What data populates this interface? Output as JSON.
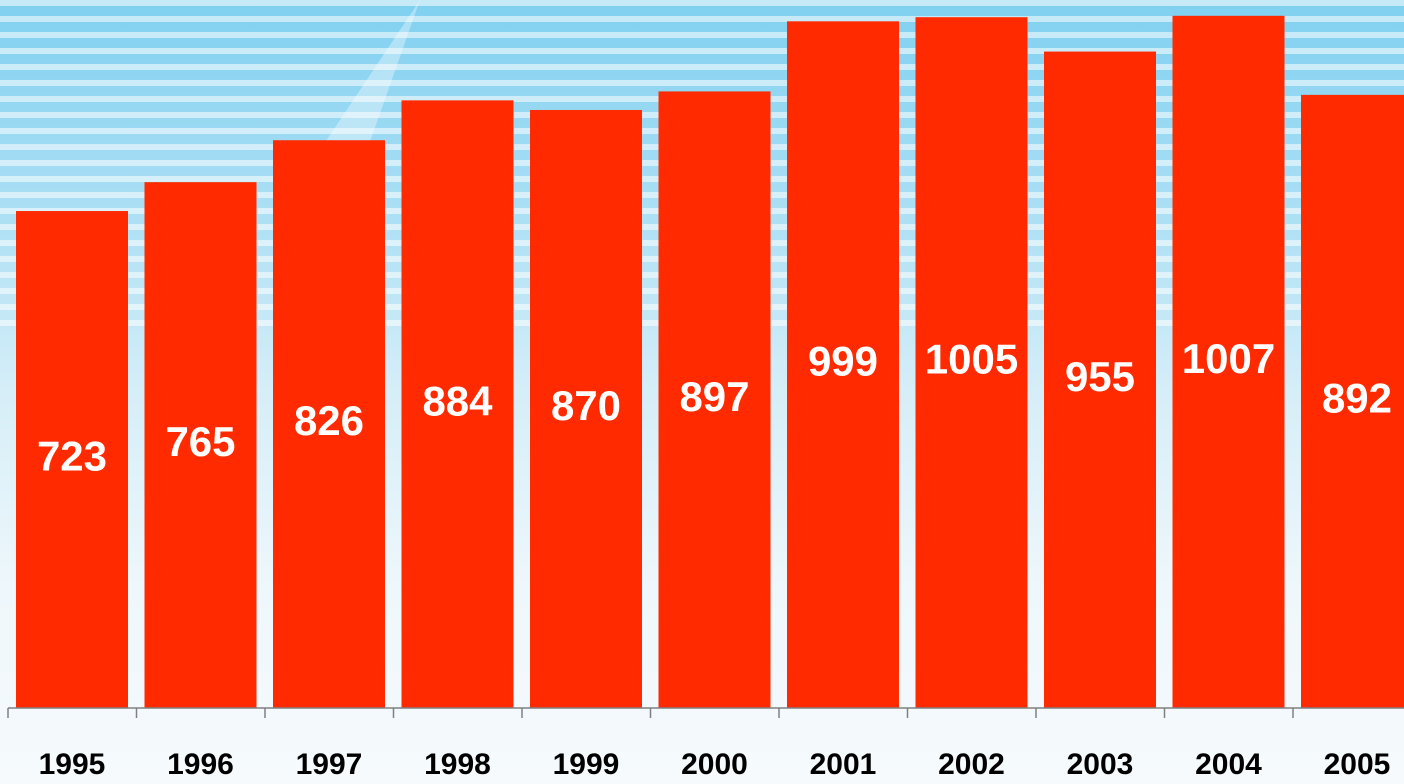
{
  "chart_data": {
    "type": "bar",
    "categories": [
      "1995",
      "1996",
      "1997",
      "1998",
      "1999",
      "2000",
      "2001",
      "2002",
      "2003",
      "2004",
      "2005"
    ],
    "values": [
      723,
      765,
      826,
      884,
      870,
      897,
      999,
      1005,
      955,
      1007,
      892
    ],
    "color": "#ff2a00",
    "ylim": [
      0,
      1030
    ]
  }
}
